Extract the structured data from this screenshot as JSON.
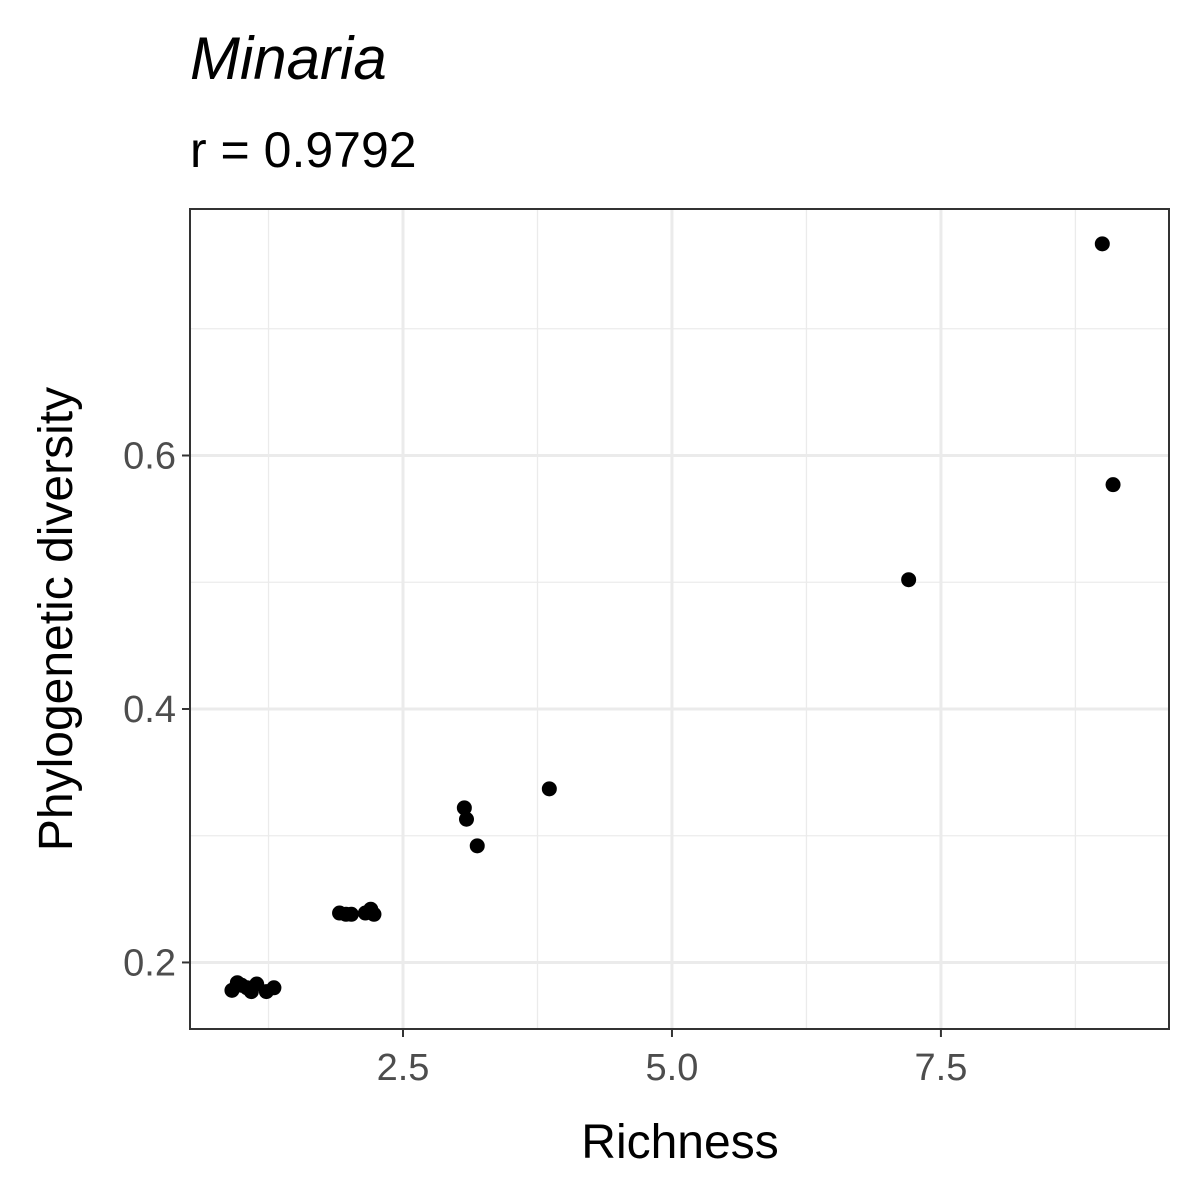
{
  "chart_data": {
    "type": "scatter",
    "title": "Minaria",
    "subtitle": "r = 0.9792",
    "xlabel": "Richness",
    "ylabel": "Phylogenetic diversity",
    "xlim": [
      0.52,
      9.62
    ],
    "ylim": [
      0.1475,
      0.7945
    ],
    "x_ticks": [
      2.5,
      5.0,
      7.5
    ],
    "x_tick_labels": [
      "2.5",
      "5.0",
      "7.5"
    ],
    "x_minor_ticks": [
      1.25,
      3.75,
      6.25,
      8.75
    ],
    "y_ticks": [
      0.2,
      0.4,
      0.6
    ],
    "y_tick_labels": [
      "0.2",
      "0.4",
      "0.6"
    ],
    "y_minor_ticks": [
      0.3,
      0.5,
      0.7
    ],
    "grid": true,
    "legend": "none",
    "point_color": "#000000",
    "background": "#ffffff",
    "grid_color": "#ebebeb",
    "panel_border_color": "#333333",
    "points": [
      {
        "x": 0.91,
        "y": 0.178
      },
      {
        "x": 0.96,
        "y": 0.184
      },
      {
        "x": 1.0,
        "y": 0.182
      },
      {
        "x": 1.05,
        "y": 0.18
      },
      {
        "x": 1.09,
        "y": 0.177
      },
      {
        "x": 1.14,
        "y": 0.183
      },
      {
        "x": 1.23,
        "y": 0.177
      },
      {
        "x": 1.3,
        "y": 0.18
      },
      {
        "x": 1.91,
        "y": 0.239
      },
      {
        "x": 1.97,
        "y": 0.238
      },
      {
        "x": 2.02,
        "y": 0.238
      },
      {
        "x": 2.15,
        "y": 0.239
      },
      {
        "x": 2.2,
        "y": 0.242
      },
      {
        "x": 2.23,
        "y": 0.238
      },
      {
        "x": 3.07,
        "y": 0.322
      },
      {
        "x": 3.09,
        "y": 0.313
      },
      {
        "x": 3.19,
        "y": 0.292
      },
      {
        "x": 3.86,
        "y": 0.337
      },
      {
        "x": 7.2,
        "y": 0.502
      },
      {
        "x": 9.0,
        "y": 0.767
      },
      {
        "x": 9.1,
        "y": 0.577
      }
    ]
  }
}
